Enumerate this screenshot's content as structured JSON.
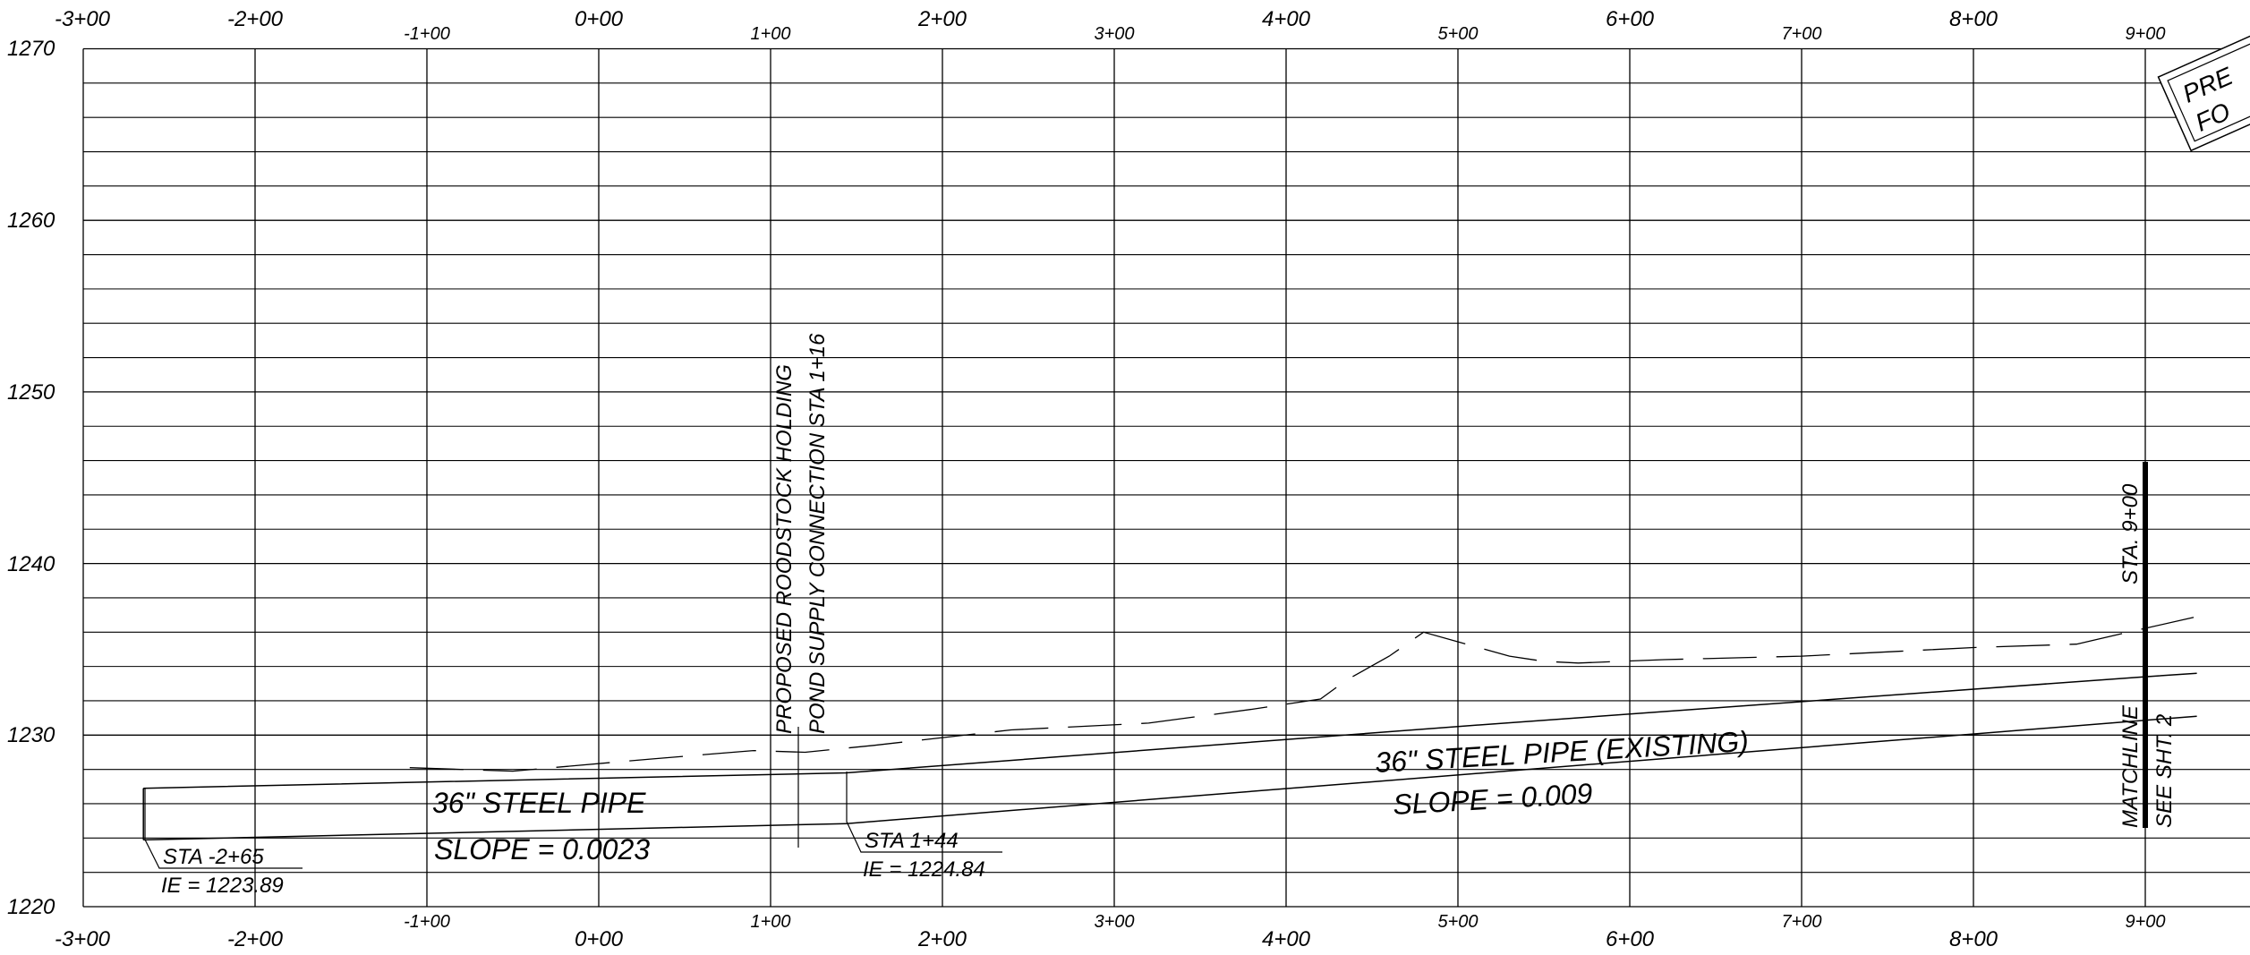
{
  "station_labels": [
    "-3+00",
    "-2+00",
    "-1+00",
    "0+00",
    "1+00",
    "2+00",
    "3+00",
    "4+00",
    "5+00",
    "6+00",
    "7+00",
    "8+00",
    "9+00"
  ],
  "elevation_labels": [
    "1270",
    "1260",
    "1250",
    "1240",
    "1230",
    "1220"
  ],
  "annotations": {
    "proposed_connection_line1": "PROPOSED ROODSTOCK HOLDING",
    "proposed_connection_line2": "POND SUPPLY CONNECTION STA 1+16",
    "match_station": "STA. 9+00",
    "matchline": "MATCHLINE",
    "see_sheet": "SEE SHT. 2",
    "stamp_line1": "PRE",
    "stamp_line2": "FO"
  },
  "pipes": {
    "proposed": {
      "label": "36\"  STEEL PIPE",
      "slope": "SLOPE = 0.0023"
    },
    "existing": {
      "label": "36\"  STEEL PIPE (EXISTING)",
      "slope": "SLOPE = 0.009"
    }
  },
  "callouts": {
    "start": {
      "station": "STA -2+65",
      "ie": "IE = 1223.89"
    },
    "bend": {
      "station": "STA 1+44",
      "ie": "IE = 1224.84"
    }
  },
  "chart_data": {
    "type": "line",
    "title": "",
    "xlabel": "",
    "ylabel": "",
    "xlim": [
      -3,
      9.3
    ],
    "ylim": [
      1220,
      1270
    ],
    "grid": true,
    "x_ticks": [
      "-3+00",
      "-2+00",
      "-1+00",
      "0+00",
      "1+00",
      "2+00",
      "3+00",
      "4+00",
      "5+00",
      "6+00",
      "7+00",
      "8+00",
      "9+00"
    ],
    "y_ticks": [
      1220,
      1230,
      1240,
      1250,
      1260,
      1270
    ],
    "series": [
      {
        "name": "36\"  STEEL PIPE",
        "x": [
          -2.65,
          1.44
        ],
        "y": [
          1223.89,
          1224.84
        ]
      },
      {
        "name": "36\"  STEEL PIPE (EXISTING)",
        "x": [
          1.44,
          9.3
        ],
        "y": [
          1224.84,
          1231.1
        ]
      },
      {
        "x": [
          -2.65,
          1.44,
          5,
          9,
          9.3
        ],
        "y": [
          1226.9,
          1227.8,
          1230.5,
          1233.4,
          1233.6
        ]
      },
      {
        "x": [
          -1.1,
          -0.5,
          0.3,
          0.9,
          1.2,
          1.6,
          2.4,
          3.2,
          3.8,
          4.2,
          4.35,
          4.6,
          4.8,
          5.3,
          5.5,
          5.7,
          6.2,
          7.0,
          8.0,
          8.6,
          8.9,
          9.3
        ],
        "y": [
          1228.1,
          1227.9,
          1228.6,
          1229.1,
          1229.0,
          1229.4,
          1230.3,
          1230.7,
          1231.5,
          1232.1,
          1233.2,
          1234.6,
          1236.0,
          1234.6,
          1234.3,
          1234.2,
          1234.4,
          1234.6,
          1235.1,
          1235.3,
          1236.0,
          1236.9
        ]
      }
    ],
    "annotations": [
      {
        "text": "STA -2+65",
        "x": -2.65,
        "y": 1223.89
      },
      {
        "text": "IE = 1223.89",
        "x": -2.65,
        "y": 1223.89
      },
      {
        "text": "STA 1+44",
        "x": 1.44,
        "y": 1224.84
      },
      {
        "text": "IE = 1224.84",
        "x": 1.44,
        "y": 1224.84
      },
      {
        "text": "STA. 9+00",
        "x": 9,
        "y": 1240
      }
    ]
  }
}
